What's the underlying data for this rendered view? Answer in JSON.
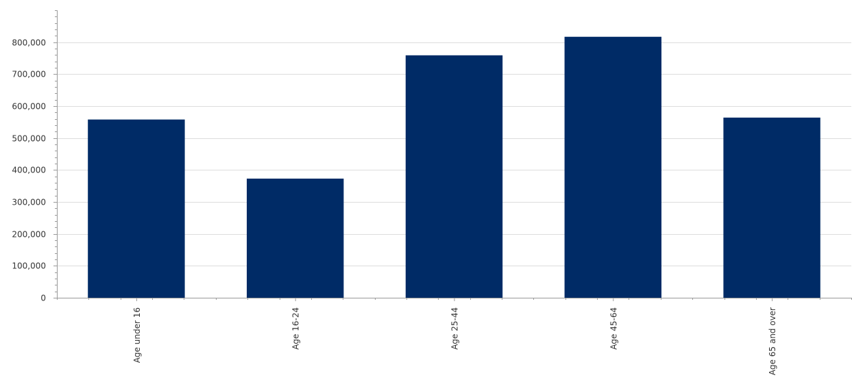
{
  "chart_data": {
    "type": "bar",
    "title": "",
    "xlabel": "",
    "ylabel": "",
    "categories": [
      "Age under 16",
      "Age 16-24",
      "Age 25-44",
      "Age 45-64",
      "Age 65 and over"
    ],
    "values": [
      558000,
      373000,
      759000,
      817000,
      564000
    ],
    "ylim": [
      0,
      900000
    ],
    "yticks": [
      0,
      100000,
      200000,
      300000,
      400000,
      500000,
      600000,
      700000,
      800000
    ],
    "ytick_labels": [
      "0",
      "100,000",
      "200,000",
      "300,000",
      "400,000",
      "500,000",
      "600,000",
      "700,000",
      "800,000"
    ],
    "grid": true,
    "legend": "none",
    "colors": {
      "bar": "#002b66",
      "grid": "#dddddd",
      "axis": "#999999"
    }
  }
}
